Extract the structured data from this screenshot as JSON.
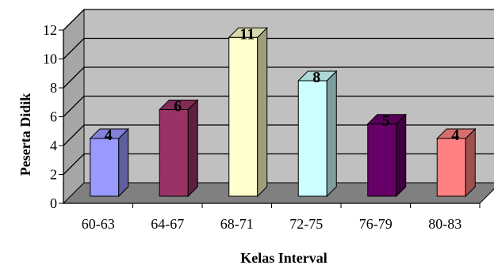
{
  "chart_data": {
    "type": "bar",
    "categories": [
      "60-63",
      "64-67",
      "68-71",
      "72-75",
      "76-79",
      "80-83"
    ],
    "values": [
      4,
      6,
      11,
      8,
      5,
      4
    ],
    "data_labels": [
      "4",
      "6",
      "11",
      "8",
      "5",
      "4"
    ],
    "xlabel": "Kelas Interval",
    "ylabel": "Peserta Didik",
    "ylim": [
      0,
      12
    ],
    "yticks": [
      "0",
      "2",
      "4",
      "6",
      "8",
      "10",
      "12"
    ],
    "grid": true,
    "style": "3d",
    "colors": {
      "back_wall": "#c0c0c0",
      "floor": "#808080",
      "side_wall": "#a6a6a6",
      "bars": [
        "#9999ff",
        "#993366",
        "#ffffcc",
        "#ccffff",
        "#660066",
        "#ff8080"
      ]
    }
  }
}
